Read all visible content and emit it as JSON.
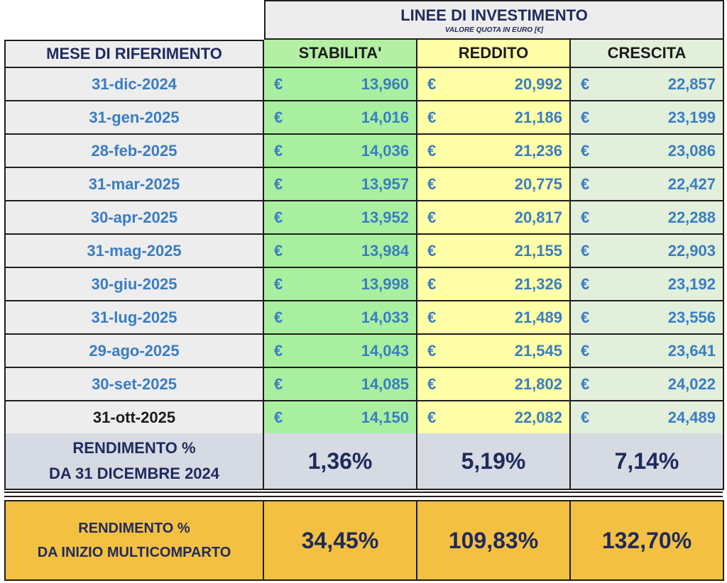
{
  "header": {
    "title": "LINEE DI INVESTIMENTO",
    "subtitle": "VALORE QUOTA IN EURO [€]"
  },
  "columns": {
    "month": "MESE DI RIFERIMENTO",
    "stabilita": "STABILITA'",
    "reddito": "REDDITO",
    "crescita": "CRESCITA"
  },
  "currency_symbol": "€",
  "rows": [
    {
      "date": "31-dic-2024",
      "stabilita": "13,960",
      "reddito": "20,992",
      "crescita": "22,857"
    },
    {
      "date": "31-gen-2025",
      "stabilita": "14,016",
      "reddito": "21,186",
      "crescita": "23,199"
    },
    {
      "date": "28-feb-2025",
      "stabilita": "14,036",
      "reddito": "21,236",
      "crescita": "23,086"
    },
    {
      "date": "31-mar-2025",
      "stabilita": "13,957",
      "reddito": "20,775",
      "crescita": "22,427"
    },
    {
      "date": "30-apr-2025",
      "stabilita": "13,952",
      "reddito": "20,817",
      "crescita": "22,288"
    },
    {
      "date": "31-mag-2025",
      "stabilita": "13,984",
      "reddito": "21,155",
      "crescita": "22,903"
    },
    {
      "date": "30-giu-2025",
      "stabilita": "13,998",
      "reddito": "21,326",
      "crescita": "23,192"
    },
    {
      "date": "31-lug-2025",
      "stabilita": "14,033",
      "reddito": "21,489",
      "crescita": "23,556"
    },
    {
      "date": "29-ago-2025",
      "stabilita": "14,043",
      "reddito": "21,545",
      "crescita": "23,641"
    },
    {
      "date": "30-set-2025",
      "stabilita": "14,085",
      "reddito": "21,802",
      "crescita": "24,022"
    },
    {
      "date": "31-ott-2025",
      "stabilita": "14,150",
      "reddito": "22,082",
      "crescita": "24,489"
    }
  ],
  "ytd_return": {
    "label_line1": "RENDIMENTO %",
    "label_line2": "DA 31 DICEMBRE 2024",
    "stabilita": "1,36%",
    "reddito": "5,19%",
    "crescita": "7,14%"
  },
  "inception_return": {
    "label_line1": "RENDIMENTO %",
    "label_line2": "DA INIZIO MULTICOMPARTO",
    "stabilita": "34,45%",
    "reddito": "109,83%",
    "crescita": "132,70%"
  },
  "colors": {
    "stabilita_bg": "#a8f0a0",
    "reddito_bg": "#ffffa8",
    "crescita_bg": "#e2efda",
    "date_text": "#3a7dc2",
    "header_text": "#1f2a5c",
    "inception_bg": "#f4c042",
    "return_bg": "#d6dae3"
  }
}
